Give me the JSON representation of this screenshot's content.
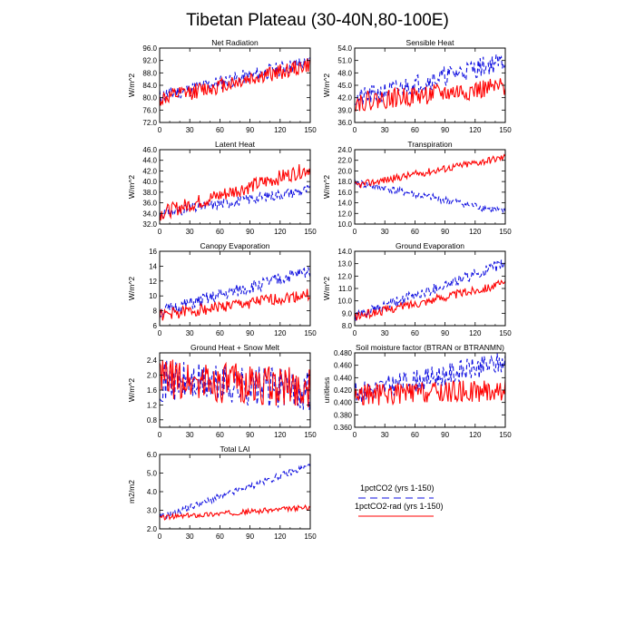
{
  "figure": {
    "title": "Tibetan Plateau (30-40N,80-100E)"
  },
  "colors": {
    "series_a": "#1010e0",
    "series_b": "#ff0000",
    "axis": "#000000"
  },
  "legend": {
    "items": [
      {
        "label": "1pctCO2 (yrs 1-150)",
        "style": "dashed",
        "color": "#1010e0"
      },
      {
        "label": "1pctCO2-rad (yrs 1-150)",
        "style": "solid",
        "color": "#ff0000"
      }
    ]
  },
  "chart_data": [
    {
      "type": "line",
      "title": "Net Radiation",
      "ylabel": "W/m^2",
      "xlim": [
        0,
        150
      ],
      "xticks": [
        0,
        30,
        60,
        90,
        120,
        150
      ],
      "ylim": [
        72,
        96
      ],
      "yticks": [
        "72.0",
        "76.0",
        "80.0",
        "84.0",
        "88.0",
        "92.0",
        "96.0"
      ],
      "series": [
        {
          "start": 80.5,
          "end": 91.5,
          "noise": 2.4,
          "seed": 11
        },
        {
          "start": 79.5,
          "end": 90.5,
          "noise": 2.6,
          "seed": 12
        }
      ]
    },
    {
      "type": "line",
      "title": "Sensible Heat",
      "ylabel": "W/m^2",
      "xlim": [
        0,
        150
      ],
      "xticks": [
        0,
        30,
        60,
        90,
        120,
        150
      ],
      "ylim": [
        36,
        54
      ],
      "yticks": [
        "36.0",
        "39.0",
        "42.0",
        "45.0",
        "48.0",
        "51.0",
        "54.0"
      ],
      "series": [
        {
          "start": 41.5,
          "end": 51.0,
          "noise": 2.4,
          "seed": 21
        },
        {
          "start": 41.0,
          "end": 44.5,
          "noise": 2.4,
          "seed": 22
        }
      ]
    },
    {
      "type": "line",
      "title": "Latent Heat",
      "ylabel": "W/m^2",
      "xlim": [
        0,
        150
      ],
      "xticks": [
        0,
        30,
        60,
        90,
        120,
        150
      ],
      "ylim": [
        32,
        46
      ],
      "yticks": [
        "32.0",
        "34.0",
        "36.0",
        "38.0",
        "40.0",
        "42.0",
        "44.0",
        "46.0"
      ],
      "series": [
        {
          "start": 34.0,
          "end": 38.5,
          "noise": 1.0,
          "seed": 31
        },
        {
          "start": 34.0,
          "end": 42.5,
          "noise": 1.4,
          "seed": 32
        }
      ]
    },
    {
      "type": "line",
      "title": "Transpiration",
      "ylabel": "W/m^2",
      "xlim": [
        0,
        150
      ],
      "xticks": [
        0,
        30,
        60,
        90,
        120,
        150
      ],
      "ylim": [
        10,
        24
      ],
      "yticks": [
        "10.0",
        "12.0",
        "14.0",
        "16.0",
        "18.0",
        "20.0",
        "22.0",
        "24.0"
      ],
      "series": [
        {
          "start": 17.8,
          "end": 12.3,
          "noise": 0.7,
          "seed": 41
        },
        {
          "start": 17.2,
          "end": 22.6,
          "noise": 0.7,
          "seed": 42
        }
      ]
    },
    {
      "type": "line",
      "title": "Canopy Evaporation",
      "ylabel": "W/m^2",
      "xlim": [
        0,
        150
      ],
      "xticks": [
        0,
        30,
        60,
        90,
        120,
        150
      ],
      "ylim": [
        6,
        16
      ],
      "yticks": [
        "6",
        "8",
        "10",
        "12",
        "14",
        "16"
      ],
      "series": [
        {
          "start": 7.8,
          "end": 13.4,
          "noise": 0.9,
          "seed": 51
        },
        {
          "start": 7.4,
          "end": 10.2,
          "noise": 0.8,
          "seed": 52
        }
      ]
    },
    {
      "type": "line",
      "title": "Ground Evaporation",
      "ylabel": "W/m^2",
      "xlim": [
        0,
        150
      ],
      "xticks": [
        0,
        30,
        60,
        90,
        120,
        150
      ],
      "ylim": [
        8,
        14
      ],
      "yticks": [
        "8.0",
        "9.0",
        "10.0",
        "11.0",
        "12.0",
        "13.0",
        "14.0"
      ],
      "series": [
        {
          "start": 8.7,
          "end": 13.0,
          "noise": 0.45,
          "seed": 61
        },
        {
          "start": 8.7,
          "end": 11.4,
          "noise": 0.35,
          "seed": 62
        }
      ]
    },
    {
      "type": "line",
      "title": "Ground Heat + Snow Melt",
      "ylabel": "W/m^2",
      "xlim": [
        0,
        150
      ],
      "xticks": [
        0,
        30,
        60,
        90,
        120,
        150
      ],
      "ylim": [
        0.6,
        2.6
      ],
      "yticks": [
        "0.8",
        "1.2",
        "1.6",
        "2.0",
        "2.4"
      ],
      "series": [
        {
          "start": 1.85,
          "end": 1.6,
          "noise": 0.55,
          "seed": 71
        },
        {
          "start": 1.9,
          "end": 1.65,
          "noise": 0.55,
          "seed": 72
        }
      ]
    },
    {
      "type": "line",
      "title": "Soil moisture factor (BTRAN or BTRANMN)",
      "ylabel": "unitless",
      "xlim": [
        0,
        150
      ],
      "xticks": [
        0,
        30,
        60,
        90,
        120,
        150
      ],
      "ylim": [
        0.36,
        0.48
      ],
      "yticks": [
        "0.360",
        "0.380",
        "0.400",
        "0.420",
        "0.440",
        "0.460",
        "0.480"
      ],
      "series": [
        {
          "start": 0.415,
          "end": 0.465,
          "noise": 0.018,
          "seed": 81
        },
        {
          "start": 0.412,
          "end": 0.42,
          "noise": 0.018,
          "seed": 82
        }
      ]
    },
    {
      "type": "line",
      "title": "Total LAI",
      "ylabel": "m2/m2",
      "xlim": [
        0,
        150
      ],
      "xticks": [
        0,
        30,
        60,
        90,
        120,
        150
      ],
      "ylim": [
        2,
        6
      ],
      "yticks": [
        "2.0",
        "3.0",
        "4.0",
        "5.0",
        "6.0"
      ],
      "series": [
        {
          "start": 2.6,
          "end": 5.4,
          "noise": 0.18,
          "seed": 91
        },
        {
          "start": 2.6,
          "end": 3.15,
          "noise": 0.14,
          "seed": 92
        }
      ]
    }
  ]
}
